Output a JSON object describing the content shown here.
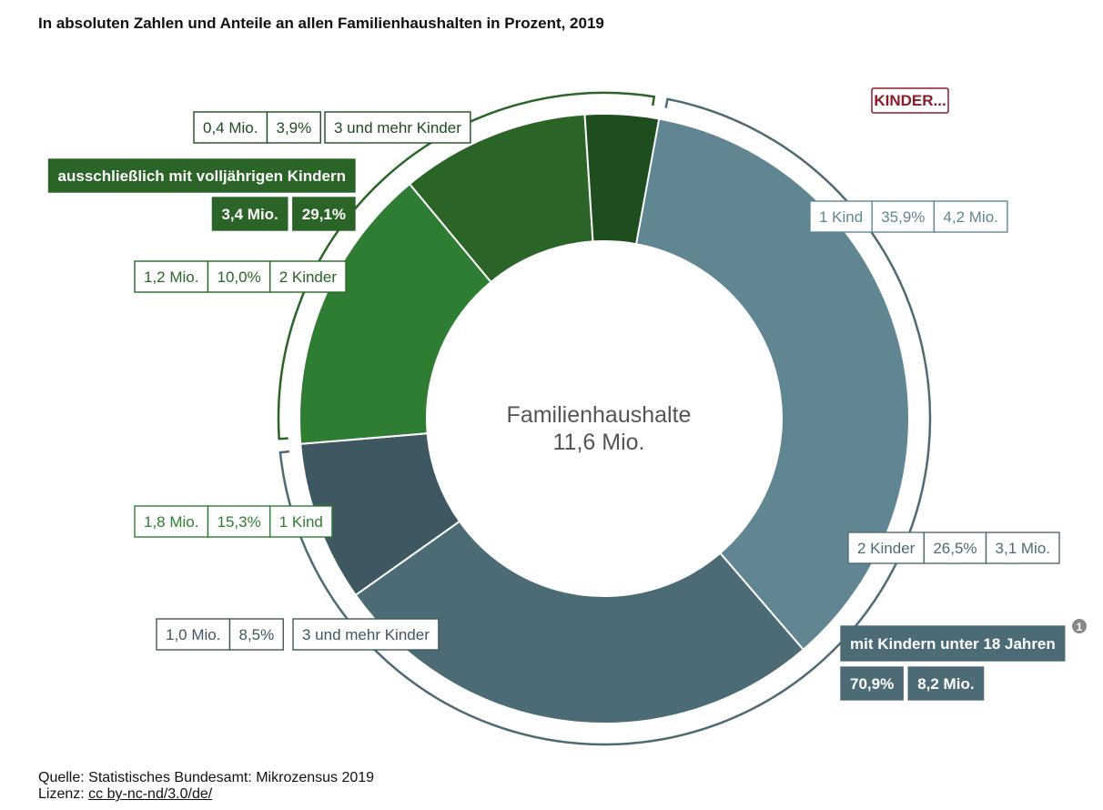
{
  "subtitle": "In absoluten Zahlen und Anteile an allen Familienhaushalten in Prozent, 2019",
  "kinder_button": "KINDER...",
  "center": {
    "line1": "Familienhaushalte",
    "line2": "11,6 Mio."
  },
  "chart_data": {
    "type": "donut",
    "total": "11,6 Mio.",
    "slices": [
      {
        "label": "1 Kind",
        "percent_label": "35,9%",
        "value_label": "4,2 Mio.",
        "percent": 35.9,
        "color": "#5F8691",
        "group": "mit Kindern unter 18 Jahren"
      },
      {
        "label": "2 Kinder",
        "percent_label": "26,5%",
        "value_label": "3,1 Mio.",
        "percent": 26.5,
        "color": "#4D6B74",
        "group": "mit Kindern unter 18 Jahren"
      },
      {
        "label": "3 und mehr Kinder",
        "percent_label": "8,5%",
        "value_label": "1,0 Mio.",
        "percent": 8.5,
        "color": "#3E5760",
        "group": "mit Kindern unter 18 Jahren"
      },
      {
        "label": "1 Kind",
        "percent_label": "15,3%",
        "value_label": "1,8 Mio.",
        "percent": 15.3,
        "color": "#2E7D32",
        "group": "ausschließlich mit volljährigen Kindern"
      },
      {
        "label": "2 Kinder",
        "percent_label": "10,0%",
        "value_label": "1,2 Mio.",
        "percent": 10.0,
        "color": "#2A6427",
        "group": "ausschließlich mit volljährigen Kindern"
      },
      {
        "label": "3 und mehr Kinder",
        "percent_label": "3,9%",
        "value_label": "0,4 Mio.",
        "percent": 3.9,
        "color": "#1E4D20",
        "group": "ausschließlich mit volljährigen Kindern"
      }
    ],
    "groups": [
      {
        "label": "mit Kindern unter 18 Jahren",
        "percent_label": "70,9%",
        "value_label": "8,2 Mio.",
        "percent": 70.9,
        "color": "#4D6B74",
        "footnote": "1"
      },
      {
        "label": "ausschließlich mit volljährigen Kindern",
        "percent_label": "29,1%",
        "value_label": "3,4 Mio.",
        "percent": 29.1,
        "color": "#2A6427"
      }
    ]
  },
  "footer": {
    "source": "Quelle: Statistisches Bundesamt: Mikrozensus 2019",
    "license_prefix": "Lizenz: ",
    "license_link": "cc by-nc-nd/3.0/de/"
  }
}
